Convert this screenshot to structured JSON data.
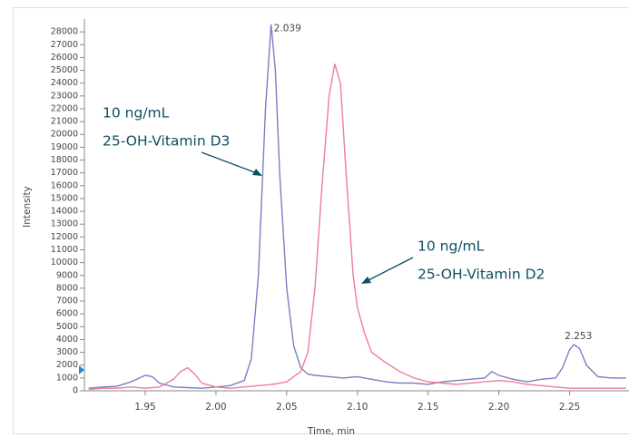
{
  "chart_data": {
    "type": "line",
    "y_label": "Intensity",
    "x_label": "Time, min",
    "xlim": [
      1.907,
      2.292
    ],
    "ylim": [
      0,
      29000
    ],
    "xticks": [
      1.95,
      {
        "value": 2.0,
        "label": "2.00"
      },
      2.05,
      {
        "value": 2.1,
        "label": "2.10"
      },
      2.15,
      {
        "value": 2.2,
        "label": "2.20"
      },
      2.25
    ],
    "yticks": [
      0,
      1000,
      2000,
      3000,
      4000,
      5000,
      6000,
      7000,
      8000,
      9000,
      10000,
      11000,
      12000,
      13000,
      14000,
      15000,
      16000,
      17000,
      18000,
      19000,
      20000,
      21000,
      22000,
      23000,
      24000,
      25000,
      26000,
      27000,
      28000
    ],
    "series": [
      {
        "color": "#7a7fc4",
        "x": [
          1.91,
          1.92,
          1.93,
          1.94,
          1.95,
          1.955,
          1.96,
          1.97,
          1.98,
          1.99,
          2.0,
          2.01,
          2.02,
          2.025,
          2.03,
          2.035,
          2.039,
          2.042,
          2.045,
          2.05,
          2.055,
          2.06,
          2.065,
          2.07,
          2.08,
          2.09,
          2.1,
          2.11,
          2.12,
          2.13,
          2.14,
          2.15,
          2.16,
          2.17,
          2.18,
          2.19,
          2.195,
          2.2,
          2.21,
          2.22,
          2.23,
          2.24,
          2.245,
          2.25,
          2.253,
          2.257,
          2.262,
          2.27,
          2.28,
          2.29
        ],
        "values": [
          200,
          300,
          350,
          700,
          1200,
          1100,
          600,
          300,
          250,
          200,
          300,
          400,
          800,
          2500,
          9000,
          22000,
          28600,
          25000,
          17000,
          8000,
          3500,
          1800,
          1300,
          1200,
          1100,
          1000,
          1100,
          900,
          700,
          600,
          600,
          500,
          700,
          800,
          900,
          1000,
          1500,
          1200,
          900,
          700,
          900,
          1000,
          1800,
          3200,
          3600,
          3300,
          2000,
          1100,
          1000,
          1000
        ]
      },
      {
        "color": "#ee7d97",
        "x": [
          1.91,
          1.92,
          1.93,
          1.94,
          1.95,
          1.96,
          1.97,
          1.975,
          1.98,
          1.985,
          1.99,
          2.0,
          2.01,
          2.02,
          2.03,
          2.04,
          2.05,
          2.06,
          2.065,
          2.07,
          2.075,
          2.08,
          2.084,
          2.088,
          2.092,
          2.097,
          2.1,
          2.105,
          2.11,
          2.12,
          2.13,
          2.14,
          2.15,
          2.16,
          2.17,
          2.18,
          2.19,
          2.2,
          2.21,
          2.22,
          2.23,
          2.24,
          2.25,
          2.26,
          2.27,
          2.28,
          2.29
        ],
        "values": [
          100,
          200,
          200,
          300,
          200,
          300,
          900,
          1500,
          1800,
          1300,
          600,
          300,
          200,
          300,
          400,
          500,
          700,
          1500,
          3000,
          8000,
          16000,
          23000,
          25500,
          24000,
          17000,
          9000,
          6500,
          4500,
          3000,
          2200,
          1500,
          1000,
          700,
          600,
          500,
          600,
          700,
          800,
          700,
          500,
          400,
          300,
          200,
          200,
          200,
          200,
          200
        ]
      }
    ],
    "peak_labels": [
      2.039,
      2.253
    ],
    "annotations": [
      {
        "lines": [
          "10 ng/mL",
          "25-OH-Vitamin D3"
        ]
      },
      {
        "lines": [
          "10 ng/mL",
          "25-OH-Vitamin D2"
        ]
      }
    ]
  }
}
